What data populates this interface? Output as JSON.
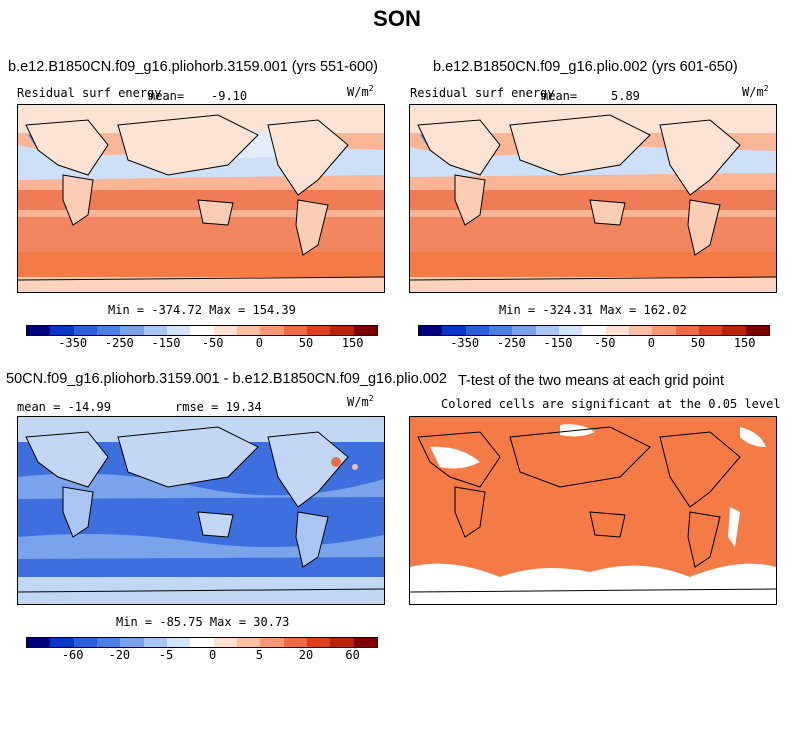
{
  "page_title": "SON",
  "units": "W/m",
  "units_sup": "2",
  "panels": [
    {
      "title": "b.e12.B1850CN.f09_g16.pliohorb.3159.001 (yrs 551-600)",
      "left_label": "Residual surf energy",
      "mean_label": "mean=",
      "mean_value": "-9.10",
      "minmax": "Min = -374.72 Max = 154.39"
    },
    {
      "title": "b.e12.B1850CN.f09_g16.plio.002 (yrs 601-650)",
      "left_label": "Residual surf energy",
      "mean_label": "mean=",
      "mean_value": "5.89",
      "minmax": "Min = -324.31 Max = 162.02"
    },
    {
      "title": "50CN.f09_g16.pliohorb.3159.001 - b.e12.B1850CN.f09_g16.plio.002",
      "mean_text": "mean = -14.99",
      "rmse_text": "rmse = 19.34",
      "minmax": "Min = -85.75 Max = 30.73"
    },
    {
      "title": "T-test of the two means at each grid point",
      "subtitle": "Colored cells are significant at the 0.05 level"
    }
  ],
  "colorbar_top": {
    "colors": [
      "#00007f",
      "#0a36c8",
      "#2a5fd9",
      "#4a7ee3",
      "#7aa3ec",
      "#a9c6f3",
      "#d3e4f8",
      "#ffffff",
      "#fde0d0",
      "#fbbfa2",
      "#f79874",
      "#ef6b45",
      "#dd3f1c",
      "#b72209",
      "#7f0000"
    ],
    "labels": [
      "-350",
      "-250",
      "-150",
      "-50",
      "0",
      "50",
      "150"
    ]
  },
  "colorbar_diff": {
    "colors": [
      "#00007f",
      "#0a36c8",
      "#2a5fd9",
      "#4a7ee3",
      "#7aa3ec",
      "#a9c6f3",
      "#d3e4f8",
      "#ffffff",
      "#fde0d0",
      "#fbbfa2",
      "#f79874",
      "#ef6b45",
      "#dd3f1c",
      "#b72209",
      "#7f0000"
    ],
    "labels": [
      "-60",
      "-20",
      "-5",
      "0",
      "5",
      "20",
      "60"
    ]
  },
  "colors": {
    "ocean_warm": "#f7a07c",
    "ocean_warmer": "#f07c55",
    "land_pale": "#fde3d3",
    "cool_blue": "#cde0f7",
    "diff_blue": "#3d6fde",
    "diff_light": "#c2d7f4",
    "ttest_orange": "#f47a46"
  }
}
